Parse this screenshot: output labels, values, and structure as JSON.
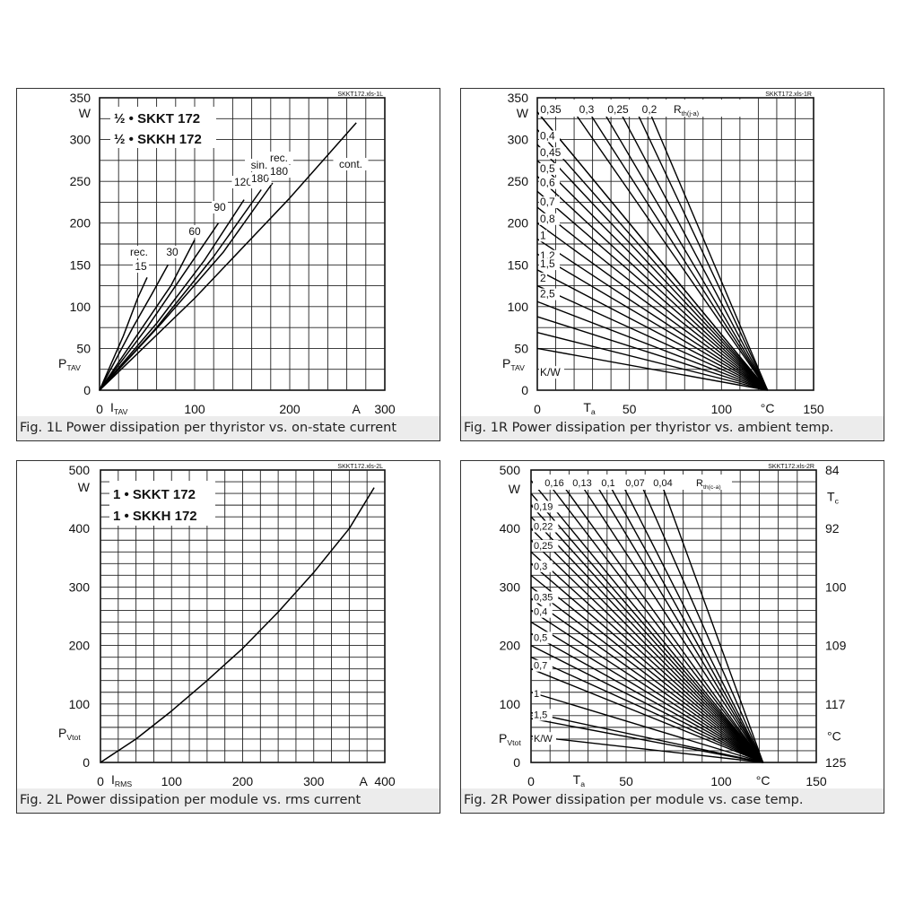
{
  "chart_data": [
    {
      "id": "1L",
      "type": "line",
      "file_tag": "SKKT172.xls-1L",
      "caption": "Fig. 1L Power dissipation per thyristor vs. on-state current",
      "legend_lines": [
        "½ • SKKT 172",
        "½ • SKKH 172"
      ],
      "xlabel": "I",
      "xlabel_sub": "TAV",
      "xunit": "A",
      "ylabel": "P",
      "ylabel_sub": "TAV",
      "yunit": "W",
      "xlim": [
        0,
        300
      ],
      "ylim": [
        0,
        350
      ],
      "x_ticks": [
        "0",
        "100",
        "200",
        "300"
      ],
      "y_ticks": [
        "0",
        "50",
        "100",
        "150",
        "200",
        "250",
        "300",
        "350"
      ],
      "series": [
        {
          "name": "15",
          "x": [
            0,
            25,
            40,
            50
          ],
          "y": [
            0,
            65,
            110,
            135
          ]
        },
        {
          "name": "30",
          "x": [
            0,
            35,
            55,
            72
          ],
          "y": [
            0,
            75,
            115,
            150
          ]
        },
        {
          "name": "60",
          "x": [
            0,
            45,
            75,
            100
          ],
          "y": [
            0,
            75,
            125,
            180
          ]
        },
        {
          "name": "90",
          "x": [
            0,
            50,
            95,
            125
          ],
          "y": [
            0,
            75,
            150,
            200
          ]
        },
        {
          "name": "120",
          "x": [
            0,
            60,
            110,
            152
          ],
          "y": [
            0,
            80,
            155,
            228
          ]
        },
        {
          "name": "sin. 180",
          "x": [
            0,
            60,
            120,
            170
          ],
          "y": [
            0,
            75,
            160,
            240
          ]
        },
        {
          "name": "rec. 180",
          "x": [
            0,
            65,
            130,
            182
          ],
          "y": [
            0,
            80,
            165,
            248
          ]
        },
        {
          "name": "cont.",
          "x": [
            0,
            100,
            200,
            270
          ],
          "y": [
            0,
            110,
            230,
            320
          ]
        }
      ],
      "curve_labels": [
        {
          "text": "rec.",
          "series": "15"
        },
        {
          "text": "15",
          "series": "15"
        },
        {
          "text": "30",
          "series": "30"
        },
        {
          "text": "60",
          "series": "60"
        },
        {
          "text": "90",
          "series": "90"
        },
        {
          "text": "120",
          "series": "120"
        },
        {
          "text": "sin.",
          "series": "sin. 180"
        },
        {
          "text": "180",
          "series": "sin. 180"
        },
        {
          "text": "rec.",
          "series": "rec. 180"
        },
        {
          "text": "180",
          "series": "rec. 180"
        },
        {
          "text": "cont.",
          "series": "cont."
        }
      ]
    },
    {
      "id": "1R",
      "type": "line",
      "file_tag": "SKKT172.xls-1R",
      "caption": "Fig. 1R Power dissipation per thyristor vs. ambient temp.",
      "xlabel": "T",
      "xlabel_sub": "a",
      "xunit": "°C",
      "ylabel": "P",
      "ylabel_sub": "TAV",
      "yunit": "W",
      "xlim": [
        0,
        150
      ],
      "ylim": [
        0,
        350
      ],
      "x_ticks": [
        "0",
        "50",
        "100",
        "150"
      ],
      "y_ticks": [
        "0",
        "50",
        "100",
        "150",
        "200",
        "250",
        "300",
        "350"
      ],
      "rth_label": "R",
      "rth_sub": "th(j-a)",
      "top_labels": [
        "0,35",
        "0,3",
        "0,25",
        "0,2"
      ],
      "left_labels": [
        "0,4",
        "0,45",
        "0,5",
        "0,6",
        "0,7",
        "0,8",
        "1",
        "1,2",
        "1,5",
        "2",
        "2,5"
      ],
      "kw_label": "K/W",
      "line_convergence": {
        "x": 125,
        "y": 0
      },
      "line_starts_y": [
        333,
        312,
        294,
        275,
        256,
        238,
        219,
        200,
        181,
        163,
        144,
        125,
        106,
        88,
        69,
        50
      ],
      "line_starts_top_x": [
        0,
        20,
        28,
        36,
        45,
        54,
        61
      ]
    },
    {
      "id": "2L",
      "type": "line",
      "file_tag": "SKKT172.xls-2L",
      "caption": "Fig. 2L Power dissipation per module vs. rms current",
      "legend_lines": [
        "1 • SKKT 172",
        "1 • SKKH 172"
      ],
      "xlabel": "I",
      "xlabel_sub": "RMS",
      "xunit": "A",
      "ylabel": "P",
      "ylabel_sub": "Vtot",
      "yunit": "W",
      "xlim": [
        0,
        400
      ],
      "ylim": [
        0,
        500
      ],
      "x_ticks": [
        "0",
        "100",
        "200",
        "300",
        "400"
      ],
      "y_ticks": [
        "0",
        "100",
        "200",
        "300",
        "400",
        "500"
      ],
      "series": [
        {
          "name": "",
          "x": [
            0,
            50,
            100,
            150,
            200,
            250,
            300,
            350,
            385
          ],
          "y": [
            0,
            40,
            88,
            140,
            195,
            257,
            325,
            400,
            470
          ]
        }
      ]
    },
    {
      "id": "2R",
      "type": "line",
      "file_tag": "SKKT172.xls-2R",
      "caption": "Fig. 2R Power dissipation per module vs. case temp.",
      "xlabel": "T",
      "xlabel_sub": "a",
      "xunit": "°C",
      "ylabel": "P",
      "ylabel_sub": "Vtot",
      "yunit": "W",
      "xlim": [
        0,
        150
      ],
      "ylim": [
        0,
        500
      ],
      "x_ticks": [
        "0",
        "50",
        "100",
        "150"
      ],
      "y_ticks": [
        "0",
        "100",
        "200",
        "300",
        "400",
        "500"
      ],
      "right_ticks": [
        "84",
        "92",
        "100",
        "109",
        "117",
        "125"
      ],
      "right_label": "T",
      "right_label_sub": "c",
      "right_unit": "°C",
      "rth_label": "R",
      "rth_sub": "th(c-a)",
      "top_labels": [
        "0,16",
        "0,13",
        "0,1",
        "0,07",
        "0,04"
      ],
      "left_labels": [
        "0,19",
        "0,22",
        "0,25",
        "0,3",
        "0,35",
        "0,4",
        "0,5",
        "0,7",
        "1",
        "1,5"
      ],
      "kw_label": "K/W",
      "line_convergence": {
        "x": 122,
        "y": 0
      },
      "line_starts_y": [
        460,
        440,
        420,
        400,
        380,
        360,
        340,
        320,
        300,
        280,
        260,
        240,
        220,
        200,
        180,
        160,
        120,
        85,
        75,
        45
      ],
      "line_starts_top_x": [
        0,
        8,
        15,
        25,
        33,
        40,
        47,
        57,
        68
      ]
    }
  ]
}
